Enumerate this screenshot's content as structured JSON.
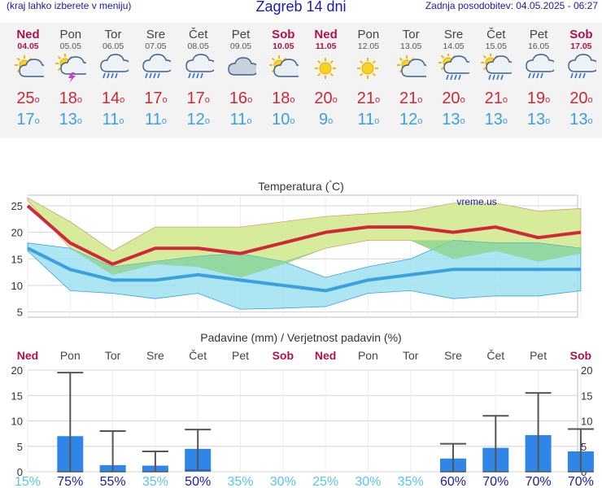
{
  "header": {
    "left_note": "(kraj lahko izberete v meniju)",
    "title": "Zagreb 14 dni",
    "updated": "Zadnja posodobitev: 04.05.2025 - 06:27"
  },
  "days": [
    {
      "name": "Ned",
      "date": "04.05",
      "weekend": true,
      "icon": "sun-cloud-icon",
      "tmax": "25",
      "tmin": "17"
    },
    {
      "name": "Pon",
      "date": "05.05",
      "weekend": false,
      "icon": "sun-cloud-thunder-icon",
      "tmax": "18",
      "tmin": "13"
    },
    {
      "name": "Tor",
      "date": "06.05",
      "weekend": false,
      "icon": "cloud-rain-icon",
      "tmax": "14",
      "tmin": "11"
    },
    {
      "name": "Sre",
      "date": "07.05",
      "weekend": false,
      "icon": "cloud-rain-icon",
      "tmax": "17",
      "tmin": "11"
    },
    {
      "name": "Čet",
      "date": "08.05",
      "weekend": false,
      "icon": "cloud-rain-icon",
      "tmax": "17",
      "tmin": "12"
    },
    {
      "name": "Pet",
      "date": "09.05",
      "weekend": false,
      "icon": "cloud-icon",
      "tmax": "16",
      "tmin": "11"
    },
    {
      "name": "Sob",
      "date": "10.05",
      "weekend": true,
      "icon": "sun-cloud-icon",
      "tmax": "18",
      "tmin": "10"
    },
    {
      "name": "Ned",
      "date": "11.05",
      "weekend": true,
      "icon": "sun-icon",
      "tmax": "20",
      "tmin": "9"
    },
    {
      "name": "Pon",
      "date": "12.05",
      "weekend": false,
      "icon": "sun-icon",
      "tmax": "21",
      "tmin": "11"
    },
    {
      "name": "Tor",
      "date": "13.05",
      "weekend": false,
      "icon": "sun-cloud-icon",
      "tmax": "21",
      "tmin": "12"
    },
    {
      "name": "Sre",
      "date": "14.05",
      "weekend": false,
      "icon": "sun-cloud-rain-icon",
      "tmax": "20",
      "tmin": "13"
    },
    {
      "name": "Čet",
      "date": "15.05",
      "weekend": false,
      "icon": "sun-cloud-rain-icon",
      "tmax": "21",
      "tmin": "13"
    },
    {
      "name": "Pet",
      "date": "16.05",
      "weekend": false,
      "icon": "cloud-rain-icon",
      "tmax": "19",
      "tmin": "13"
    },
    {
      "name": "Sob",
      "date": "17.05",
      "weekend": true,
      "icon": "cloud-rain-icon",
      "tmax": "20",
      "tmin": "13"
    }
  ],
  "colors": {
    "tmax": "#d02838",
    "tmin": "#3aa0e0",
    "weekend": "#b0104e",
    "max_band": "#d7ec9a",
    "min_band": "#9fe0f0",
    "overlap": "#8fd68f",
    "precip_bar": "#2f86e8",
    "high_prob": "#1a1aa8",
    "low_prob": "#59c3ea"
  },
  "chart_data": [
    {
      "type": "line",
      "title": "Temperatura (°C)",
      "watermark": "vreme.us",
      "categories": [
        "Ned",
        "Pon",
        "Tor",
        "Sre",
        "Čet",
        "Pet",
        "Sob",
        "Ned",
        "Pon",
        "Tor",
        "Sre",
        "Čet",
        "Pet",
        "Sob"
      ],
      "ylim": [
        4,
        27
      ],
      "yticks": [
        5,
        10,
        15,
        20,
        25
      ],
      "series": [
        {
          "values": [
            25,
            18,
            14,
            17,
            17,
            16,
            18,
            20,
            21,
            21,
            20,
            21,
            19,
            20
          ],
          "range_low": [
            26,
            17,
            12,
            14,
            13.5,
            11.5,
            14,
            17,
            18.5,
            18.5,
            15,
            16.5,
            14.5,
            16
          ],
          "range_high": [
            26.5,
            22,
            16.5,
            21,
            21,
            21,
            22,
            23,
            23.5,
            24,
            25.5,
            25.5,
            24,
            24.5
          ]
        },
        {
          "values": [
            17,
            13,
            11,
            11,
            12,
            11,
            10,
            9,
            11,
            12,
            13,
            13,
            13,
            13
          ],
          "range_low": [
            16.5,
            9,
            8.5,
            7.5,
            8.5,
            5.5,
            5.7,
            6,
            8.5,
            9,
            7.5,
            8,
            8,
            9
          ],
          "range_high": [
            18,
            17,
            13.5,
            14.5,
            15.5,
            16,
            14.5,
            11.5,
            13.5,
            15,
            18.5,
            18,
            18,
            17
          ]
        }
      ],
      "grid": true
    },
    {
      "type": "bar",
      "title": "Padavine (mm) / Verjetnost padavin (%)",
      "categories": [
        "Ned",
        "Pon",
        "Tor",
        "Sre",
        "Čet",
        "Pet",
        "Sob",
        "Ned",
        "Pon",
        "Tor",
        "Sre",
        "Čet",
        "Pet",
        "Sob"
      ],
      "ylim": [
        0,
        20
      ],
      "yticks": [
        0,
        5,
        10,
        15,
        20
      ],
      "values": [
        0,
        7,
        1.3,
        1.2,
        4.5,
        0,
        0,
        0,
        0,
        0,
        2.6,
        4.7,
        7.2,
        4
      ],
      "range_low": [
        0,
        0,
        0,
        0,
        0.3,
        0,
        0,
        0,
        0,
        0,
        0,
        0,
        0,
        0
      ],
      "range_high": [
        0,
        19.5,
        8,
        4,
        8.3,
        0,
        0,
        0,
        0,
        0,
        5.5,
        11,
        15.5,
        8.4
      ],
      "probabilities": [
        "15%",
        "75%",
        "55%",
        "35%",
        "50%",
        "35%",
        "30%",
        "25%",
        "30%",
        "35%",
        "60%",
        "70%",
        "70%",
        "70%"
      ],
      "probability_values": [
        15,
        75,
        55,
        35,
        50,
        35,
        30,
        25,
        30,
        35,
        60,
        70,
        70,
        70
      ],
      "grid": true
    }
  ]
}
